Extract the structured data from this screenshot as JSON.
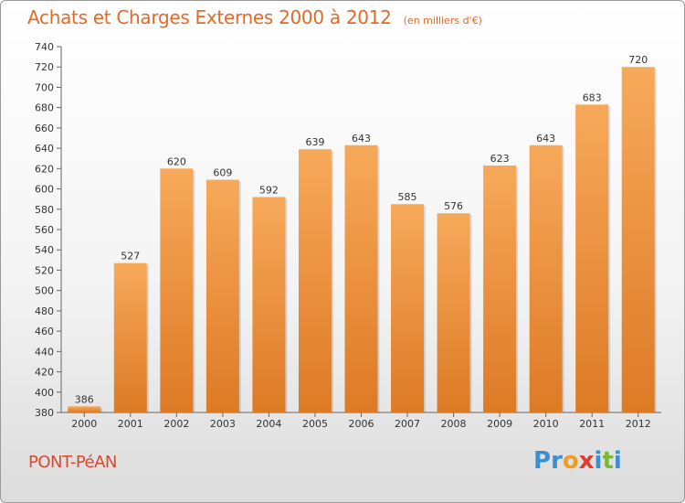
{
  "title": "Achats et Charges Externes 2000 à 2012",
  "unit": "(en milliers d'€)",
  "place": "PONT-PéAN",
  "logo": {
    "letters": [
      "P",
      "r",
      "o",
      "x",
      "i",
      "t",
      "i"
    ],
    "colors": [
      "#3a8fd0",
      "#3a8fd0",
      "#f29c1f",
      "#e23b2e",
      "#3a8fd0",
      "#7cb63a",
      "#3a8fd0"
    ]
  },
  "colors": {
    "bar_top": "#f7a95a",
    "bar_bottom": "#dd7a26",
    "title": "#e06a2a",
    "place": "#e0462c"
  },
  "chart_data": {
    "type": "bar",
    "title": "Achats et Charges Externes 2000 à 2012",
    "subtitle": "(en milliers d'€)",
    "categories": [
      "2000",
      "2001",
      "2002",
      "2003",
      "2004",
      "2005",
      "2006",
      "2007",
      "2008",
      "2009",
      "2010",
      "2011",
      "2012"
    ],
    "values": [
      386,
      527,
      620,
      609,
      592,
      639,
      643,
      585,
      576,
      623,
      643,
      683,
      720
    ],
    "ylim": [
      380,
      740
    ],
    "yticks": [
      380,
      400,
      420,
      440,
      460,
      480,
      500,
      520,
      540,
      560,
      580,
      600,
      620,
      640,
      660,
      680,
      700,
      720,
      740
    ],
    "grid": false,
    "data_labels": true
  }
}
